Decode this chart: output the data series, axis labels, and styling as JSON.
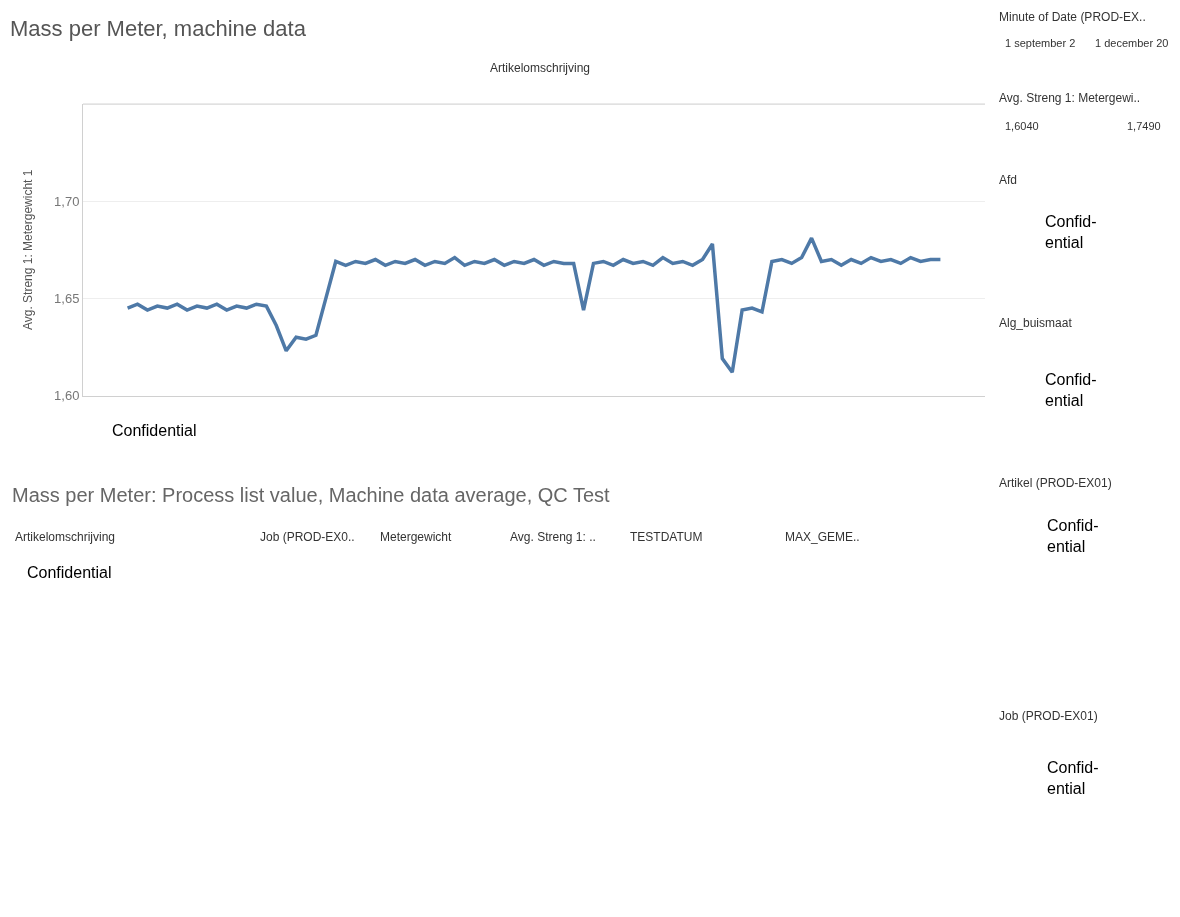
{
  "chart_data": {
    "type": "line",
    "title": "Mass per Meter, machine data",
    "ylabel": "Avg. Streng 1: Metergewicht 1",
    "categories": [
      null,
      null,
      null,
      null,
      null,
      null,
      null,
      null,
      null,
      null,
      null,
      null,
      null,
      null,
      null,
      null,
      null,
      null,
      null,
      null,
      null,
      null,
      null,
      null,
      null,
      null,
      null,
      null,
      null,
      null,
      null,
      null,
      null,
      null,
      null,
      null,
      null,
      null,
      null,
      null,
      null,
      null,
      null,
      null,
      null,
      null,
      null,
      null,
      null,
      null,
      null,
      null,
      null,
      null,
      null,
      null,
      null,
      null,
      null,
      null,
      null,
      null,
      null,
      null,
      null,
      null,
      null,
      null,
      null,
      null,
      null,
      null,
      null,
      null,
      null,
      null,
      null,
      null,
      null,
      null,
      null,
      null,
      null,
      null,
      null,
      null,
      null,
      null,
      null,
      null,
      null
    ],
    "series": [
      {
        "color": "#4e79a7",
        "values": [
          null,
          null,
          null,
          null,
          1.645,
          1.647,
          1.644,
          1.646,
          1.645,
          1.647,
          1.644,
          1.646,
          1.645,
          1.647,
          1.644,
          1.646,
          1.645,
          1.647,
          1.646,
          1.636,
          1.623,
          1.63,
          1.629,
          1.631,
          1.65,
          1.669,
          1.667,
          1.669,
          1.668,
          1.67,
          1.667,
          1.669,
          1.668,
          1.67,
          1.667,
          1.669,
          1.668,
          1.671,
          1.667,
          1.669,
          1.668,
          1.67,
          1.667,
          1.669,
          1.668,
          1.67,
          1.667,
          1.669,
          1.668,
          1.668,
          1.644,
          1.668,
          1.669,
          1.667,
          1.67,
          1.668,
          1.669,
          1.667,
          1.671,
          1.668,
          1.669,
          1.667,
          1.67,
          1.678,
          1.619,
          1.612,
          1.644,
          1.645,
          1.643,
          1.669,
          1.67,
          1.668,
          1.671,
          1.681,
          1.669,
          1.67,
          1.667,
          1.67,
          1.668,
          1.671,
          1.669,
          1.67,
          1.668,
          1.671,
          1.669,
          1.67,
          1.67,
          null,
          null,
          null,
          null
        ]
      }
    ],
    "ylim": [
      1.6,
      1.75
    ],
    "yticks": [
      {
        "value": 1.6,
        "label": "1,60"
      },
      {
        "value": 1.65,
        "label": "1,65"
      },
      {
        "value": 1.7,
        "label": "1,70"
      }
    ],
    "grid": "y",
    "tick_labels": "y",
    "line_style": "solid",
    "marker": "none",
    "annotations": [
      "Artikelomschrijving",
      "Confidential",
      "Mass per Meter: Process list value, Machine data average, QC Test",
      "Artikelomschrijving",
      "Job (PROD-EX0..",
      "Metergewicht",
      "Avg. Streng 1: ..",
      "TESTDATUM",
      "MAX_GEME..",
      "Confidential",
      "Minute of Date (PROD-EX..",
      "1 september 2",
      "1 december 20",
      "Avg. Streng 1: Metergewi..",
      "1,6040",
      "1,7490",
      "Afd",
      "Confid-\nential",
      "Alg_buismaat",
      "Confid-\nential",
      "Artikel (PROD-EX01)",
      "Confid-\nential",
      "Job (PROD-EX01)",
      "Confid-\nential"
    ]
  }
}
